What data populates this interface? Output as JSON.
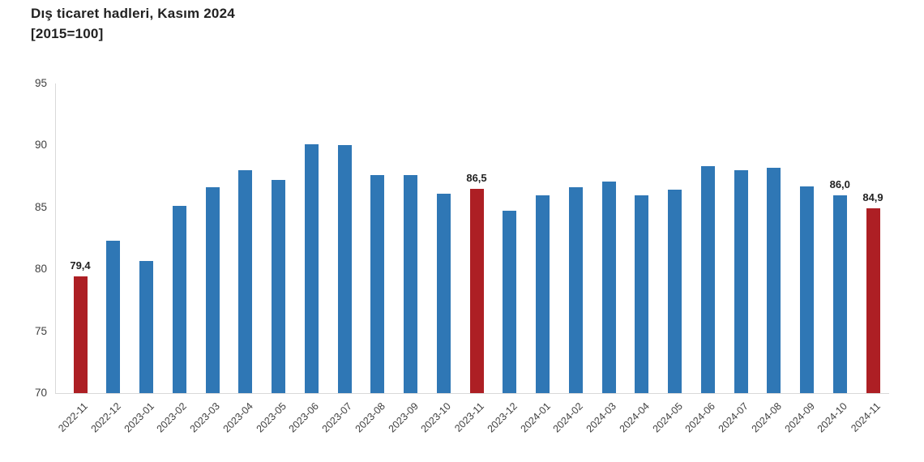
{
  "title": {
    "line1": "Dış ticaret hadleri, Kasım 2024",
    "line2": "[2015=100]"
  },
  "chart_data": {
    "type": "bar",
    "title": "Dış ticaret hadleri, Kasım 2024 [2015=100]",
    "categories": [
      "2022-11",
      "2022-12",
      "2023-01",
      "2023-02",
      "2023-03",
      "2023-04",
      "2023-05",
      "2023-06",
      "2023-07",
      "2023-08",
      "2023-09",
      "2023-10",
      "2023-11",
      "2023-12",
      "2024-01",
      "2024-02",
      "2024-03",
      "2024-04",
      "2024-05",
      "2024-06",
      "2024-07",
      "2024-08",
      "2024-09",
      "2024-10",
      "2024-11"
    ],
    "values": [
      79.4,
      82.3,
      80.7,
      85.1,
      86.6,
      88.0,
      87.2,
      90.1,
      90.0,
      87.6,
      87.6,
      86.1,
      86.5,
      84.7,
      86.0,
      86.6,
      87.1,
      86.0,
      86.4,
      88.3,
      88.0,
      88.2,
      86.7,
      86.0,
      84.9
    ],
    "value_labels": {
      "0": "79,4",
      "12": "86,5",
      "23": "86,0",
      "24": "84,9"
    },
    "highlighted_indices": [
      0,
      12,
      24
    ],
    "colors": {
      "bar": "#2f77b5",
      "highlight": "#ad1f24",
      "axis": "#d9d9d9",
      "tick_text": "#404040",
      "label_text": "#222222"
    },
    "xlabel": "",
    "ylabel": "",
    "ylim": [
      70,
      95
    ],
    "yticks": [
      70,
      75,
      80,
      85,
      90,
      95
    ],
    "grid": "off",
    "legend": "none"
  }
}
